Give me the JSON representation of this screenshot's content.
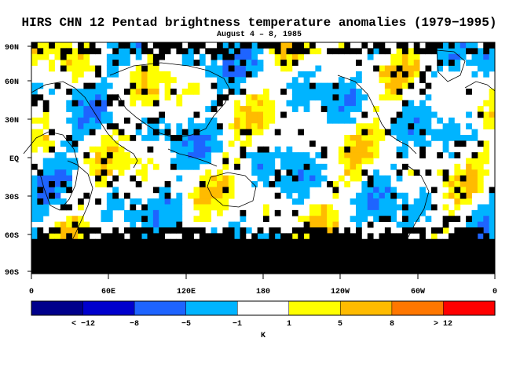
{
  "title": "HIRS CHN 12 Pentad brightness temperature anomalies (1979−1995)",
  "subtitle": "August 4 – 8, 1985",
  "latitude_labels": [
    "90N",
    "60N",
    "30N",
    "EQ",
    "30S",
    "60S",
    "90S"
  ],
  "longitude_labels": [
    "0",
    "60E",
    "120E",
    "180",
    "120W",
    "60W",
    "0"
  ],
  "colorbar": {
    "unit": "K",
    "labels": [
      "< −12",
      "−8",
      "−5",
      "−1",
      "1",
      "5",
      "8",
      "> 12"
    ],
    "colors": [
      "#00008b",
      "#0000cd",
      "#1e64ff",
      "#00b4ff",
      "#ffffff",
      "#ffff00",
      "#ffbb00",
      "#ff7700",
      "#ff0000"
    ]
  },
  "legend_colors": {
    "no_data": "#000000",
    "land_outline": "#000000"
  }
}
